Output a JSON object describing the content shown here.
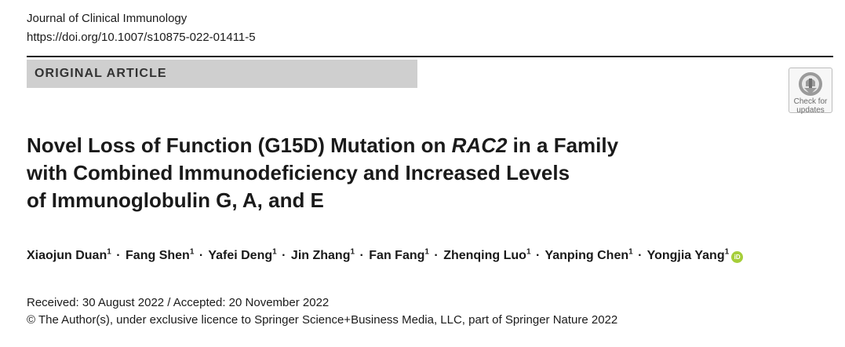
{
  "header": {
    "journal": "Journal of Clinical Immunology",
    "doi": "https://doi.org/10.1007/s10875-022-01411-5"
  },
  "article_type": "ORIGINAL ARTICLE",
  "check_updates": {
    "line1": "Check for",
    "line2": "updates"
  },
  "title": {
    "line1_before": "Novel Loss of Function (G15D) Mutation on ",
    "line1_gene": "RAC2",
    "line1_after": " in a Family",
    "line2": "with Combined Immunodeficiency and Increased Levels",
    "line3": "of Immunoglobulin G, A, and E"
  },
  "authors": [
    {
      "name": "Xiaojun Duan",
      "affiliation": "1"
    },
    {
      "name": "Fang Shen",
      "affiliation": "1"
    },
    {
      "name": "Yafei Deng",
      "affiliation": "1"
    },
    {
      "name": "Jin Zhang",
      "affiliation": "1"
    },
    {
      "name": "Fan Fang",
      "affiliation": "1"
    },
    {
      "name": "Zhenqing Luo",
      "affiliation": "1"
    },
    {
      "name": "Yanping Chen",
      "affiliation": "1"
    },
    {
      "name": "Yongjia Yang",
      "affiliation": "1"
    }
  ],
  "author_separator": "·",
  "orcid_label": "iD",
  "dates": "Received: 30 August 2022 / Accepted: 20 November 2022",
  "copyright": "© The Author(s), under exclusive licence to Springer Science+Business Media, LLC, part of Springer Nature 2022",
  "colors": {
    "article_type_bg": "#cfcfcf",
    "orcid": "#a6ce39",
    "text": "#1a1a1a"
  }
}
